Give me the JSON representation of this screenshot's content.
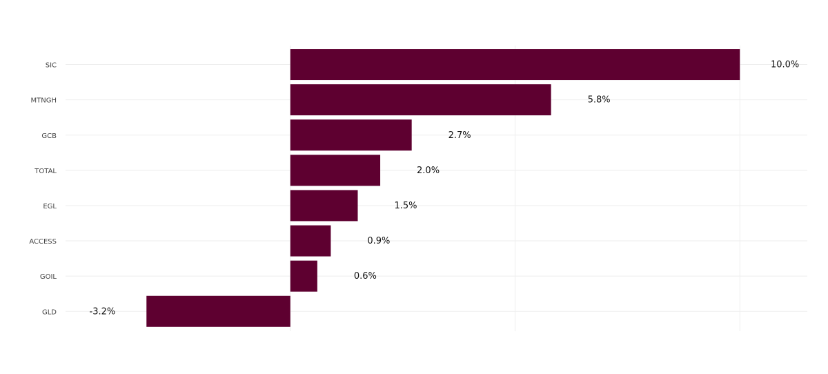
{
  "chart_data": {
    "type": "bar",
    "orientation": "horizontal",
    "categories": [
      "SIC",
      "MTNGH",
      "GCB",
      "TOTAL",
      "EGL",
      "ACCESS",
      "GOIL",
      "GLD"
    ],
    "values": [
      10.0,
      5.8,
      2.7,
      2.0,
      1.5,
      0.9,
      0.6,
      -3.2
    ],
    "data_labels": [
      "10.0%",
      "5.8%",
      "2.7%",
      "2.0%",
      "1.5%",
      "0.9%",
      "0.6%",
      "-3.2%"
    ],
    "xlim": [
      -5,
      11.5
    ],
    "x_gridlines": [
      0,
      5,
      10
    ],
    "grid": true,
    "legend": "none",
    "bar_color": "#5e0030"
  }
}
